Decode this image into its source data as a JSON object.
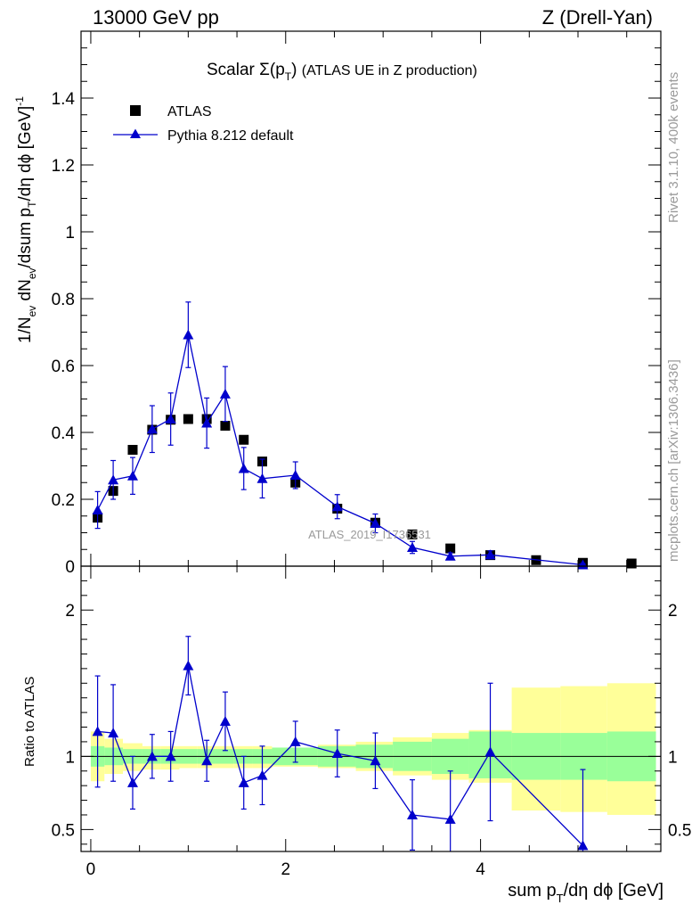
{
  "header": {
    "energy": "13000 GeV pp",
    "process": "Z (Drell-Yan)"
  },
  "side_labels": {
    "rivet": "Rivet 3.1.10,  400k events",
    "source": "mcplots.cern.ch [arXiv:1306.3436]"
  },
  "watermark": "ATLAS_2019_I1736531",
  "chart_data": [
    {
      "id": "main",
      "type": "scatter",
      "title": "Scalar Σ(p_T) (ATLAS UE in Z production)",
      "xlabel": "sum p_T/dη dϕ [GeV]",
      "ylabel": "1/N_ev dN_ev/dsum p_T/dη dϕ [GeV]^-1",
      "xlim": [
        -0.1,
        5.85
      ],
      "ylim": [
        0,
        1.6
      ],
      "grid": false,
      "legend_position": "top-left",
      "x_ticks": [
        0,
        2,
        4
      ],
      "y_ticks": [
        0,
        0.2,
        0.4,
        0.6,
        0.8,
        1,
        1.2,
        1.4
      ],
      "y_tick_labels": [
        "0",
        "0.2",
        "0.4",
        "0.6",
        "0.8",
        "1",
        "1.2",
        "1.4"
      ],
      "series": [
        {
          "name": "ATLAS",
          "marker": "square",
          "color": "#000000",
          "x": [
            0.07,
            0.23,
            0.43,
            0.63,
            0.82,
            1.0,
            1.19,
            1.38,
            1.57,
            1.76,
            2.1,
            2.53,
            2.92,
            3.3,
            3.69,
            4.1,
            4.57,
            5.05,
            5.55
          ],
          "y": [
            0.145,
            0.225,
            0.348,
            0.408,
            0.438,
            0.44,
            0.44,
            0.42,
            0.378,
            0.313,
            0.25,
            0.172,
            0.13,
            0.095,
            0.053,
            0.033,
            0.018,
            0.01,
            0.008
          ]
        },
        {
          "name": "Pythia 8.212 default",
          "marker": "triangle",
          "color": "#0000cc",
          "x": [
            0.07,
            0.23,
            0.43,
            0.63,
            0.82,
            1.0,
            1.19,
            1.38,
            1.57,
            1.76,
            2.1,
            2.53,
            2.92,
            3.3,
            3.69,
            4.1,
            5.05
          ],
          "y": [
            0.168,
            0.258,
            0.27,
            0.41,
            0.44,
            0.692,
            0.428,
            0.515,
            0.292,
            0.262,
            0.272,
            0.178,
            0.128,
            0.056,
            0.03,
            0.034,
            0.004
          ],
          "yerr": [
            0.055,
            0.058,
            0.055,
            0.07,
            0.078,
            0.098,
            0.075,
            0.082,
            0.063,
            0.058,
            0.04,
            0.036,
            0.028,
            0.018,
            0.01,
            0.012,
            0.004
          ]
        }
      ]
    },
    {
      "id": "ratio",
      "type": "line",
      "ylabel": "Ratio to ATLAS",
      "xlim": [
        -0.1,
        5.85
      ],
      "ylim": [
        0.35,
        2.3
      ],
      "reference_line": 1.0,
      "x_ticks": [
        0,
        2,
        4
      ],
      "x_tick_labels": [
        "0",
        "2",
        "4"
      ],
      "y_ticks": [
        0.5,
        1,
        2
      ],
      "y_tick_labels": [
        "0.5",
        "1",
        "2"
      ],
      "bands": {
        "edges": [
          0.0,
          0.14,
          0.33,
          0.53,
          0.72,
          0.91,
          1.09,
          1.28,
          1.47,
          1.66,
          1.86,
          2.33,
          2.72,
          3.1,
          3.5,
          3.88,
          4.32,
          4.82,
          5.3,
          5.8
        ],
        "stat_low": [
          0.93,
          0.94,
          0.95,
          0.95,
          0.95,
          0.95,
          0.95,
          0.95,
          0.95,
          0.95,
          0.94,
          0.93,
          0.92,
          0.9,
          0.88,
          0.85,
          0.84,
          0.84,
          0.83
        ],
        "stat_high": [
          1.07,
          1.06,
          1.05,
          1.05,
          1.05,
          1.05,
          1.05,
          1.05,
          1.05,
          1.05,
          1.06,
          1.07,
          1.08,
          1.1,
          1.12,
          1.17,
          1.16,
          1.16,
          1.17
        ],
        "total_low": [
          0.83,
          0.88,
          0.9,
          0.91,
          0.91,
          0.92,
          0.92,
          0.92,
          0.92,
          0.92,
          0.93,
          0.92,
          0.9,
          0.87,
          0.84,
          0.82,
          0.63,
          0.62,
          0.6
        ],
        "total_high": [
          1.17,
          1.12,
          1.09,
          1.07,
          1.07,
          1.07,
          1.07,
          1.07,
          1.07,
          1.07,
          1.06,
          1.08,
          1.1,
          1.13,
          1.16,
          1.18,
          1.47,
          1.48,
          1.5
        ],
        "stat_color": "#99ff99",
        "total_color": "#ffff99"
      },
      "series": [
        {
          "name": "Pythia 8.212 default / ATLAS",
          "marker": "triangle",
          "color": "#0000cc",
          "x": [
            0.07,
            0.23,
            0.43,
            0.63,
            0.82,
            1.0,
            1.19,
            1.38,
            1.57,
            1.76,
            2.1,
            2.53,
            2.92,
            3.3,
            3.69,
            4.1,
            5.05
          ],
          "y": [
            1.17,
            1.16,
            0.82,
            1.0,
            1.0,
            1.62,
            0.97,
            1.24,
            0.82,
            0.87,
            1.1,
            1.02,
            0.97,
            0.6,
            0.57,
            1.03,
            0.39
          ],
          "yerr": [
            0.38,
            0.33,
            0.18,
            0.15,
            0.17,
            0.2,
            0.14,
            0.2,
            0.18,
            0.2,
            0.14,
            0.16,
            0.19,
            0.24,
            0.33,
            0.47,
            0.52
          ]
        }
      ]
    }
  ]
}
